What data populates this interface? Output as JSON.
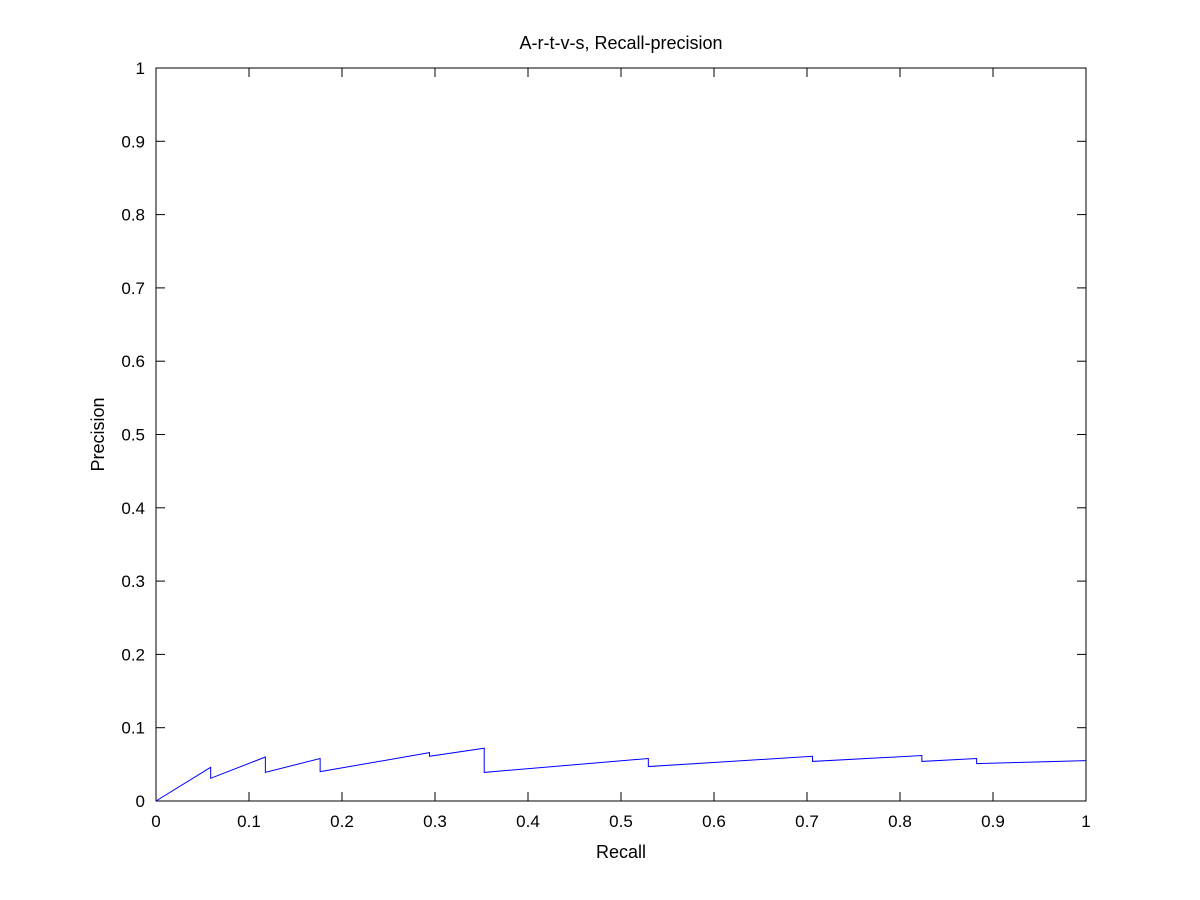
{
  "chart_data": {
    "type": "line",
    "title": "A-r-t-v-s, Recall-precision",
    "xlabel": "Recall",
    "ylabel": "Precision",
    "xlim": [
      0,
      1
    ],
    "ylim": [
      0,
      1
    ],
    "xticks": [
      0,
      0.1,
      0.2,
      0.3,
      0.4,
      0.5,
      0.6,
      0.7,
      0.8,
      0.9,
      1
    ],
    "yticks": [
      0,
      0.1,
      0.2,
      0.3,
      0.4,
      0.5,
      0.6,
      0.7,
      0.8,
      0.9,
      1
    ],
    "xtick_labels": [
      "0",
      "0.1",
      "0.2",
      "0.3",
      "0.4",
      "0.5",
      "0.6",
      "0.7",
      "0.8",
      "0.9",
      "1"
    ],
    "ytick_labels": [
      "0",
      "0.1",
      "0.2",
      "0.3",
      "0.4",
      "0.5",
      "0.6",
      "0.7",
      "0.8",
      "0.9",
      "1"
    ],
    "grid": false,
    "legend": null,
    "series": [
      {
        "color": "#0000ff",
        "x": [
          0,
          0.0588,
          0.0588,
          0.1176,
          0.1176,
          0.1765,
          0.1765,
          0.2941,
          0.2941,
          0.3529,
          0.3529,
          0.5294,
          0.5294,
          0.7059,
          0.7059,
          0.8235,
          0.8235,
          0.8824,
          0.8824,
          1.0
        ],
        "y": [
          0,
          0.046,
          0.031,
          0.06,
          0.039,
          0.058,
          0.04,
          0.066,
          0.061,
          0.072,
          0.039,
          0.058,
          0.047,
          0.061,
          0.054,
          0.062,
          0.054,
          0.058,
          0.051,
          0.055
        ]
      }
    ]
  }
}
